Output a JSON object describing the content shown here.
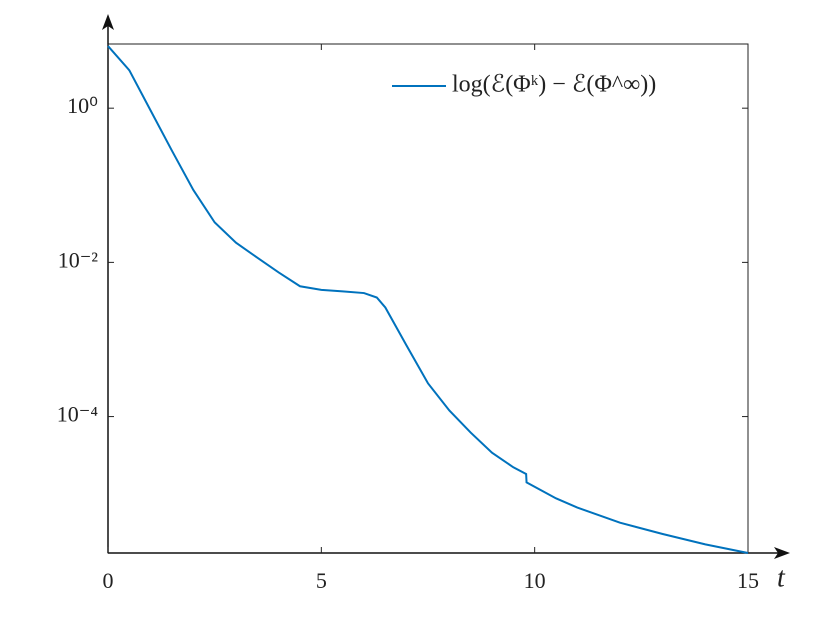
{
  "chart_data": {
    "type": "line",
    "log_y": true,
    "x_label": "t",
    "x": [
      0,
      0.5,
      1,
      1.5,
      2,
      2.5,
      3,
      3.5,
      4,
      4.5,
      5,
      5.5,
      6,
      6.3,
      6.5,
      7,
      7.5,
      8,
      8.5,
      9,
      9.5,
      9.8,
      9.81,
      10.5,
      11,
      12,
      13,
      14,
      15
    ],
    "series": [
      {
        "name": "log(ℰ(Φᵏ) − ℰ(Φ^∞))",
        "color": "#0072bd",
        "values": [
          6.4,
          3.1,
          0.93,
          0.28,
          0.087,
          0.033,
          0.018,
          0.0115,
          0.0074,
          0.0049,
          0.0044,
          0.0042,
          0.004,
          0.0035,
          0.0026,
          0.00083,
          0.00027,
          0.00012,
          6.2e-05,
          3.4e-05,
          2.2e-05,
          1.8e-05,
          1.4e-05,
          8.7e-06,
          6.6e-06,
          4.2e-06,
          3e-06,
          2.2e-06,
          1.7e-06
        ]
      }
    ],
    "xlim": [
      0,
      15
    ],
    "xticks": [
      0,
      5,
      10,
      15
    ],
    "ylim": [
      1.7e-06,
      6.8
    ],
    "yticks": [
      {
        "value": 1,
        "label": "10⁰"
      },
      {
        "value": 0.01,
        "label": "10⁻²"
      },
      {
        "value": 0.0001,
        "label": "10⁻⁴"
      }
    ],
    "legend": "upper right"
  }
}
